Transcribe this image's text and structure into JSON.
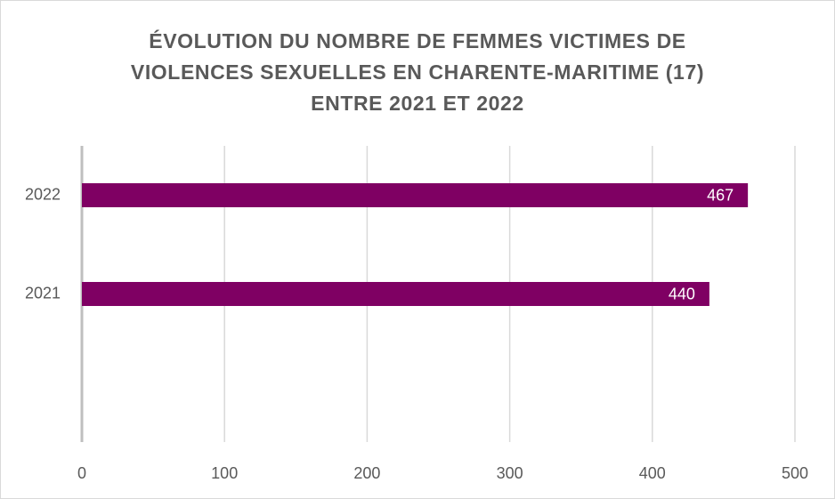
{
  "chart_data": {
    "type": "hbar",
    "title": [
      "ÉVOLUTION DU NOMBRE DE FEMMES VICTIMES DE",
      "VIOLENCES SEXUELLES EN CHARENTE-MARITIME (17)",
      "ENTRE 2021 ET 2022"
    ],
    "categories": [
      null,
      "2021",
      "2022"
    ],
    "values": [
      null,
      440,
      467
    ],
    "color": "#7f0063",
    "xlim": [
      0,
      500
    ],
    "xticks": [
      0,
      100,
      200,
      300,
      400,
      500
    ],
    "grid": true
  }
}
